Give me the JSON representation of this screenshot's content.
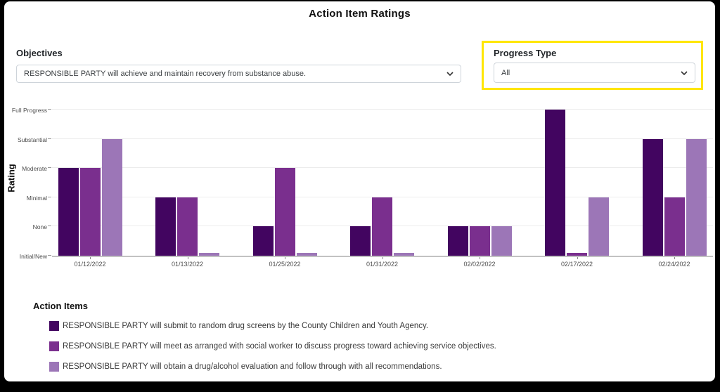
{
  "title": "Action Item Ratings",
  "filters": {
    "objectives": {
      "label": "Objectives",
      "selected": "RESPONSIBLE PARTY will achieve and maintain recovery from substance abuse."
    },
    "progress_type": {
      "label": "Progress Type",
      "selected": "All",
      "highlight_color": "#FFE600"
    }
  },
  "chart_data": {
    "type": "bar",
    "title": "Action Item Ratings",
    "ylabel": "Rating",
    "ylim": [
      0,
      5
    ],
    "grid": true,
    "legend_title": "Action Items",
    "legend_position": "bottom",
    "rating_scale": [
      "Initial/New",
      "None",
      "Minimal",
      "Moderate",
      "Substantial",
      "Full Progress"
    ],
    "categories": [
      "01/12/2022",
      "01/13/2022",
      "01/25/2022",
      "01/31/2022",
      "02/02/2022",
      "02/17/2022",
      "02/24/2022"
    ],
    "series": [
      {
        "name": "RESPONSIBLE PARTY will submit to random drug screens by the County Children and Youth Agency.",
        "color": "#420560",
        "values": [
          3,
          2,
          1,
          1,
          1,
          5,
          4
        ],
        "ratings": [
          "Moderate",
          "Minimal",
          "None",
          "None",
          "None",
          "Full Progress",
          "Substantial"
        ]
      },
      {
        "name": "RESPONSIBLE PARTY will meet as arranged with social worker to discuss progress toward achieving service objectives.",
        "color": "#7A2F8E",
        "values": [
          3,
          2,
          3,
          2,
          1,
          0,
          2
        ],
        "ratings": [
          "Moderate",
          "Minimal",
          "Moderate",
          "Minimal",
          "None",
          "Initial/New",
          "Minimal"
        ]
      },
      {
        "name": "RESPONSIBLE PARTY will obtain a drug/alcohol evaluation and follow through with all recommendations.",
        "color": "#9C76B7",
        "values": [
          4,
          0,
          0,
          0,
          1,
          2,
          4
        ],
        "ratings": [
          "Substantial",
          "Initial/New",
          "Initial/New",
          "Initial/New",
          "None",
          "Minimal",
          "Substantial"
        ]
      }
    ]
  }
}
